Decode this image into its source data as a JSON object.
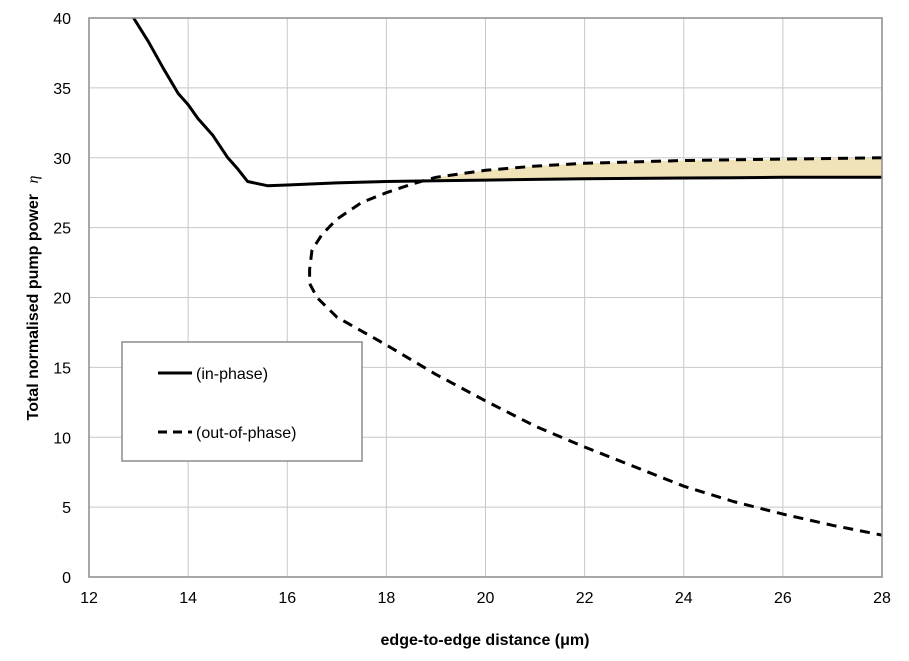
{
  "chart_data": {
    "type": "line",
    "title": "",
    "xlabel": "edge-to-edge distance (μm)",
    "ylabel": "Total normalised pump power",
    "ylabel_symbol": "η",
    "xlim": [
      12,
      28
    ],
    "ylim": [
      0,
      40
    ],
    "xticks": [
      12,
      14,
      16,
      18,
      20,
      22,
      24,
      26,
      28
    ],
    "yticks": [
      0,
      5,
      10,
      15,
      20,
      25,
      30,
      35,
      40
    ],
    "grid": true,
    "legend_position": "left-middle",
    "fill_between": {
      "description": "shaded region between series",
      "from_x": 18.8,
      "to_x": 28,
      "color": "#efe3b7"
    },
    "series": [
      {
        "name": "(in-phase)",
        "style": "solid",
        "color": "#000000",
        "points": [
          [
            12.9,
            40
          ],
          [
            13.2,
            38.3
          ],
          [
            13.5,
            36.4
          ],
          [
            13.8,
            34.6
          ],
          [
            14.0,
            33.8
          ],
          [
            14.2,
            32.8
          ],
          [
            14.5,
            31.6
          ],
          [
            14.8,
            30.0
          ],
          [
            15.0,
            29.2
          ],
          [
            15.2,
            28.3
          ],
          [
            15.6,
            28.0
          ],
          [
            16.0,
            28.05
          ],
          [
            17.0,
            28.2
          ],
          [
            18.0,
            28.3
          ],
          [
            19.0,
            28.35
          ],
          [
            20.0,
            28.4
          ],
          [
            21.0,
            28.45
          ],
          [
            22.0,
            28.5
          ],
          [
            23.0,
            28.52
          ],
          [
            24.0,
            28.55
          ],
          [
            25.0,
            28.57
          ],
          [
            26.0,
            28.6
          ],
          [
            27.0,
            28.6
          ],
          [
            28.0,
            28.6
          ]
        ]
      },
      {
        "name": "(out-of-phase)",
        "style": "dashed",
        "color": "#000000",
        "points": [
          [
            28.0,
            30.0
          ],
          [
            26.0,
            29.9
          ],
          [
            24.0,
            29.8
          ],
          [
            22.0,
            29.6
          ],
          [
            21.0,
            29.4
          ],
          [
            20.0,
            29.1
          ],
          [
            19.0,
            28.6
          ],
          [
            18.5,
            28.1
          ],
          [
            18.0,
            27.5
          ],
          [
            17.5,
            26.8
          ],
          [
            17.0,
            25.6
          ],
          [
            16.7,
            24.5
          ],
          [
            16.5,
            23.4
          ],
          [
            16.45,
            22.0
          ],
          [
            16.45,
            21.0
          ],
          [
            16.6,
            20.0
          ],
          [
            17.0,
            18.6
          ],
          [
            18.0,
            16.6
          ],
          [
            19.0,
            14.5
          ],
          [
            20.0,
            12.6
          ],
          [
            21.0,
            10.8
          ],
          [
            22.0,
            9.3
          ],
          [
            23.0,
            7.9
          ],
          [
            24.0,
            6.5
          ],
          [
            25.0,
            5.4
          ],
          [
            26.0,
            4.5
          ],
          [
            27.0,
            3.7
          ],
          [
            28.0,
            3.0
          ]
        ]
      }
    ]
  }
}
